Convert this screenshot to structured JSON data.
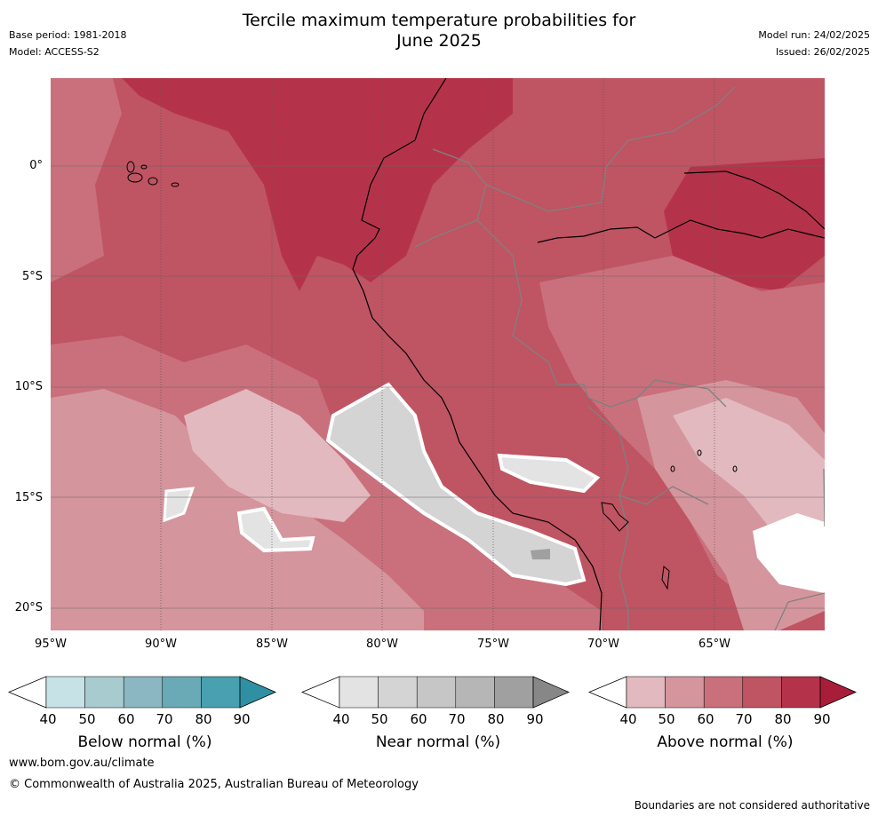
{
  "header": {
    "base_period": "Base period: 1981-2018",
    "model": "Model: ACCESS-S2",
    "title_line1": "Tercile maximum temperature probabilities for",
    "title_line2": "June 2025",
    "model_run": "Model run: 24/02/2025",
    "issued": "Issued: 26/02/2025"
  },
  "map": {
    "lat_labels": [
      "0°",
      "5°S",
      "10°S",
      "15°S",
      "20°S"
    ],
    "lon_labels": [
      "95°W",
      "90°W",
      "85°W",
      "80°W",
      "75°W",
      "70°W",
      "65°W"
    ]
  },
  "colorbars": [
    {
      "title": "Below normal (%)",
      "ticks": [
        "40",
        "50",
        "60",
        "70",
        "80",
        "90"
      ],
      "colors": [
        "#ffffff",
        "#c7e2e6",
        "#a8cbd0",
        "#8ab7c2",
        "#6aaab6",
        "#48a0b0",
        "#2f8fa3"
      ]
    },
    {
      "title": "Near normal (%)",
      "ticks": [
        "40",
        "50",
        "60",
        "70",
        "80",
        "90"
      ],
      "colors": [
        "#ffffff",
        "#e3e3e3",
        "#d4d4d4",
        "#c6c6c6",
        "#b6b6b6",
        "#a0a0a0",
        "#878787"
      ]
    },
    {
      "title": "Above normal (%)",
      "ticks": [
        "40",
        "50",
        "60",
        "70",
        "80",
        "90"
      ],
      "colors": [
        "#ffffff",
        "#e2b9bf",
        "#d5959d",
        "#c9707c",
        "#bf5463",
        "#b5334a",
        "#a81d38"
      ]
    }
  ],
  "footer": {
    "website": "www.bom.gov.au/climate",
    "copyright": "© Commonwealth of Australia 2025, Australian Bureau of Meteorology",
    "disclaimer": "Boundaries are not considered authoritative"
  }
}
